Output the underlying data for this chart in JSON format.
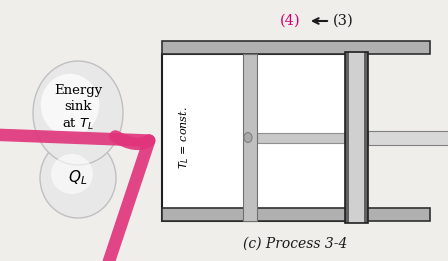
{
  "bg_color": "#f0eeeb",
  "title": "(c) Process 3-4",
  "label_4": "(4)",
  "label_3": "(3)",
  "label_4_color": "#d4006a",
  "label_3_color": "#1a1a1a",
  "energy_sink_text": "Energy\nsink\nat $T_L$",
  "ql_text": "$Q_L$",
  "tl_text": "$T_L$ = const.",
  "arrow_color": "#e0337a"
}
